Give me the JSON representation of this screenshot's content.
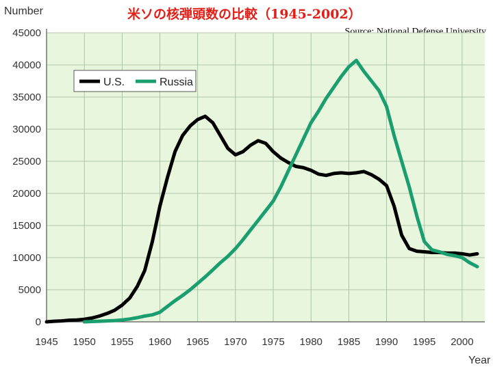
{
  "chart_title": "米ソの核弾頭数の比較（1945-2002）",
  "source": "Source: National Defense University",
  "chart_data": {
    "type": "line",
    "title": "米ソの核弾頭数の比較（1945-2002）",
    "ylabel": "Number",
    "xlabel": "Year",
    "xlim": [
      1945,
      2002
    ],
    "ylim": [
      0,
      45000
    ],
    "x_ticks": [
      1945,
      1950,
      1955,
      1960,
      1965,
      1970,
      1975,
      1980,
      1985,
      1990,
      1995,
      2000
    ],
    "y_ticks": [
      0,
      5000,
      10000,
      15000,
      20000,
      25000,
      30000,
      35000,
      40000,
      45000
    ],
    "grid": true,
    "legend_position": "top-left",
    "background_color": "#e9f6de",
    "series": [
      {
        "name": "U.S.",
        "color": "#000000",
        "x": [
          1945,
          1946,
          1947,
          1948,
          1949,
          1950,
          1951,
          1952,
          1953,
          1954,
          1955,
          1956,
          1957,
          1958,
          1959,
          1960,
          1961,
          1962,
          1963,
          1964,
          1965,
          1966,
          1967,
          1968,
          1969,
          1970,
          1971,
          1972,
          1973,
          1974,
          1975,
          1976,
          1977,
          1978,
          1979,
          1980,
          1981,
          1982,
          1983,
          1984,
          1985,
          1986,
          1987,
          1988,
          1989,
          1990,
          1991,
          1992,
          1993,
          1994,
          1995,
          1996,
          1997,
          1998,
          1999,
          2000,
          2001,
          2002
        ],
        "values": [
          0,
          100,
          150,
          250,
          300,
          400,
          600,
          900,
          1300,
          1800,
          2600,
          3700,
          5500,
          8000,
          12500,
          18000,
          22500,
          26500,
          29000,
          30500,
          31500,
          32000,
          31000,
          29000,
          27000,
          26000,
          26500,
          27500,
          28200,
          27800,
          26500,
          25500,
          24800,
          24200,
          24000,
          23600,
          23000,
          22800,
          23100,
          23200,
          23100,
          23200,
          23400,
          22900,
          22200,
          21200,
          18000,
          13500,
          11400,
          11000,
          10900,
          10800,
          10800,
          10700,
          10700,
          10600,
          10400,
          10600
        ]
      },
      {
        "name": "Russia",
        "color": "#1a9e6e",
        "x": [
          1950,
          1951,
          1952,
          1953,
          1954,
          1955,
          1956,
          1957,
          1958,
          1959,
          1960,
          1961,
          1962,
          1963,
          1964,
          1965,
          1966,
          1967,
          1968,
          1969,
          1970,
          1971,
          1972,
          1973,
          1974,
          1975,
          1976,
          1977,
          1978,
          1979,
          1980,
          1981,
          1982,
          1983,
          1984,
          1985,
          1986,
          1987,
          1988,
          1989,
          1990,
          1991,
          1992,
          1993,
          1994,
          1995,
          1996,
          1997,
          1998,
          1999,
          2000,
          2001,
          2002
        ],
        "values": [
          0,
          50,
          100,
          150,
          200,
          300,
          450,
          650,
          900,
          1100,
          1500,
          2400,
          3300,
          4100,
          5000,
          6000,
          7000,
          8100,
          9200,
          10200,
          11400,
          12800,
          14300,
          15800,
          17300,
          18800,
          21000,
          23500,
          26000,
          28500,
          31000,
          32800,
          34800,
          36500,
          38200,
          39700,
          40700,
          39000,
          37500,
          36000,
          33500,
          29000,
          25000,
          21000,
          16500,
          12500,
          11200,
          10900,
          10500,
          10300,
          10000,
          9200,
          8600
        ]
      }
    ]
  }
}
